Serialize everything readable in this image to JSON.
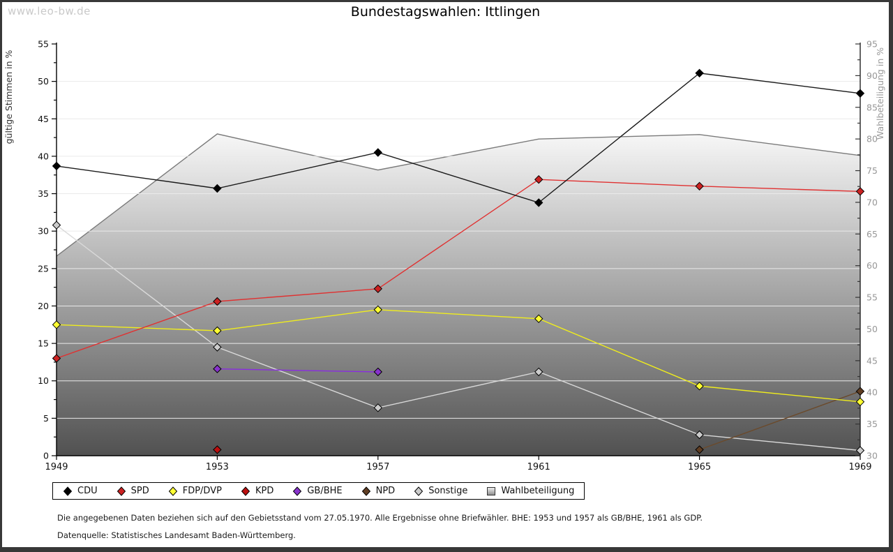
{
  "page": {
    "watermark": "www.leo-bw.de",
    "title": "Bundestagswahlen: Ittlingen"
  },
  "footnotes": {
    "line1": "Die angegebenen Daten beziehen sich auf den Gebietsstand vom 27.05.1970. Alle Ergebnisse ohne Briefwähler. BHE: 1953 und 1957 als GB/BHE, 1961 als GDP.",
    "line2": "Datenquelle: Statistisches Landesamt Baden-Württemberg."
  },
  "chart_data": {
    "type": "line",
    "title": "Bundestagswahlen: Ittlingen",
    "x": [
      1949,
      1953,
      1957,
      1961,
      1965,
      1969
    ],
    "left_axis": {
      "label": "gültige Stimmen in %",
      "min": 0,
      "max": 55,
      "tick": 5,
      "minor_tick": 2.5
    },
    "right_axis": {
      "label": "Wahlbeteiligung in %",
      "min": 30,
      "max": 95,
      "tick": 5,
      "minor_tick": 2.5
    },
    "grid": true,
    "grid_color": "#eaeaea",
    "legend_order": [
      "CDU",
      "SPD",
      "FDP/DVP",
      "KPD",
      "GB/BHE",
      "NPD",
      "Sonstige",
      "Wahlbeteiligung"
    ],
    "series": [
      {
        "name": "Wahlbeteiligung",
        "type": "area",
        "axis": "right",
        "line_color": "#7a7a7a",
        "fill_top": "#f7f7f7",
        "fill_bottom": "#515151",
        "values": [
          61.5,
          80.8,
          75.1,
          80.0,
          80.7,
          77.4
        ]
      },
      {
        "name": "Sonstige",
        "type": "line",
        "axis": "left",
        "line_color": "#d9d9d9",
        "marker_color": "#cccccc",
        "values": [
          30.8,
          14.5,
          6.4,
          11.2,
          2.8,
          0.7
        ]
      },
      {
        "name": "GB/BHE",
        "type": "line",
        "axis": "left",
        "line_color": "#8a2be2",
        "marker_color": "#8833cc",
        "values": [
          null,
          11.6,
          11.2,
          null,
          null,
          null
        ]
      },
      {
        "name": "KPD",
        "type": "line",
        "axis": "left",
        "line_color": "#aa0000",
        "marker_color": "#bb0f0f",
        "values": [
          null,
          0.8,
          null,
          null,
          null,
          null
        ]
      },
      {
        "name": "NPD",
        "type": "line",
        "axis": "left",
        "line_color": "#6b4a2b",
        "marker_color": "#5f3d22",
        "values": [
          null,
          null,
          null,
          null,
          0.8,
          8.6
        ]
      },
      {
        "name": "FDP/DVP",
        "type": "line",
        "axis": "left",
        "line_color": "#f0ed1c",
        "marker_color": "#ffff33",
        "values": [
          17.5,
          16.7,
          19.5,
          18.3,
          9.3,
          7.2
        ]
      },
      {
        "name": "SPD",
        "type": "line",
        "axis": "left",
        "line_color": "#e03131",
        "marker_color": "#cc2222",
        "values": [
          13.0,
          20.6,
          22.3,
          36.9,
          36.0,
          35.3
        ]
      },
      {
        "name": "CDU",
        "type": "line",
        "axis": "left",
        "line_color": "#1a1a1a",
        "marker_color": "#000000",
        "values": [
          38.7,
          35.7,
          40.5,
          33.8,
          51.1,
          48.4
        ]
      }
    ]
  }
}
